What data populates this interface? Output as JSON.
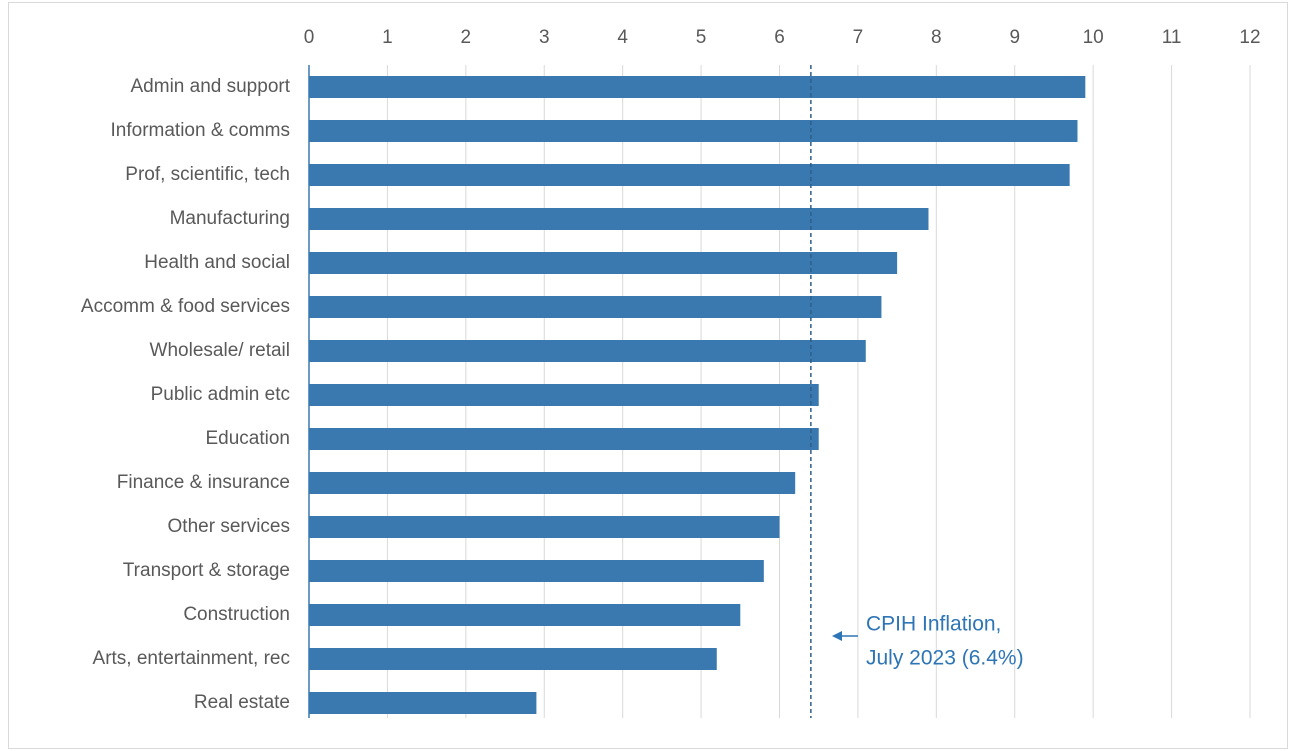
{
  "chart_data": {
    "type": "bar",
    "orientation": "horizontal",
    "categories": [
      "Admin and support",
      "Information & comms",
      "Prof, scientific, tech",
      "Manufacturing",
      "Health and social",
      "Accomm & food services",
      "Wholesale/ retail",
      "Public admin etc",
      "Education",
      "Finance & insurance",
      "Other services",
      "Transport & storage",
      "Construction",
      "Arts, entertainment, rec",
      "Real estate"
    ],
    "values": [
      9.9,
      9.8,
      9.7,
      7.9,
      7.5,
      7.3,
      7.1,
      6.5,
      6.5,
      6.2,
      6.0,
      5.8,
      5.5,
      5.2,
      2.9
    ],
    "color": "#3a78b0",
    "xlim": [
      0,
      12
    ],
    "xticks": [
      0,
      1,
      2,
      3,
      4,
      5,
      6,
      7,
      8,
      9,
      10,
      11,
      12
    ],
    "grid": true,
    "annotation": {
      "value": 6.4,
      "lines": [
        "CPIH Inflation,",
        "July 2023 (6.4%)"
      ],
      "color": "#2e75b6"
    }
  }
}
